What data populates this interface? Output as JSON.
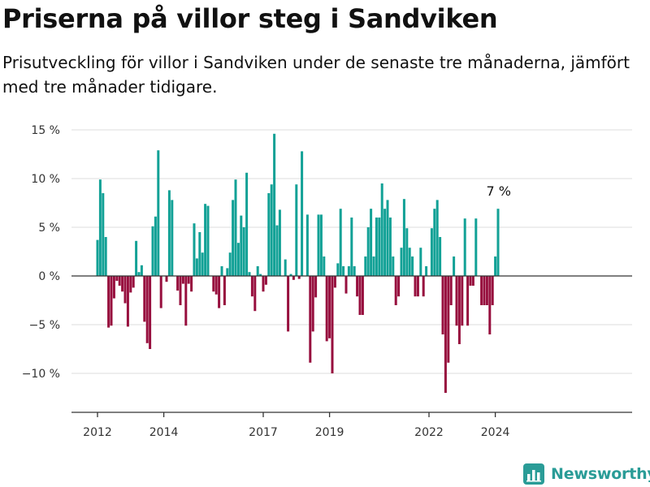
{
  "header": {
    "title": "Priserna på villor steg i Sandviken",
    "subtitle": "Prisutveckling för villor i Sandviken under de senaste tre månaderna, jämfört med tre månader tidigare."
  },
  "logo": {
    "text": "Newsworthy",
    "icon": "newsworthy-chart-icon"
  },
  "colors": {
    "positive": "#12a196",
    "negative": "#970f3e",
    "grid": "#dcdcdc",
    "zero": "#333333"
  },
  "chart_data": {
    "type": "bar",
    "title": "Priserna på villor steg i Sandviken",
    "xlabel": "",
    "ylabel": "",
    "ylim": [
      -14,
      15
    ],
    "x_start": "2012-01",
    "y_ticks": [
      15,
      10,
      5,
      0,
      -5,
      -10
    ],
    "y_tick_labels": [
      "15 %",
      "10 %",
      "5 %",
      "0 %",
      "−5 %",
      "−10 %"
    ],
    "x_ticks": [
      "2012",
      "2014",
      "2017",
      "2019",
      "2022",
      "2024"
    ],
    "end_label": "7 %",
    "values": [
      3.7,
      9.9,
      8.5,
      4.0,
      -5.3,
      -5.1,
      -2.3,
      -0.5,
      -1.0,
      -1.6,
      -2.8,
      -5.2,
      -1.7,
      -1.2,
      3.6,
      0.4,
      1.1,
      -4.7,
      -6.9,
      -7.5,
      5.1,
      6.1,
      12.9,
      -3.3,
      0.0,
      -0.6,
      8.8,
      7.8,
      0.0,
      -1.5,
      -3.0,
      -0.8,
      -5.1,
      -0.8,
      -1.6,
      5.4,
      1.8,
      4.5,
      2.4,
      7.4,
      7.2,
      0.0,
      -1.6,
      -1.9,
      -3.3,
      1.0,
      -3.0,
      0.8,
      2.4,
      7.8,
      9.9,
      3.4,
      6.2,
      5.0,
      10.6,
      0.4,
      -2.1,
      -3.6,
      1.0,
      0.2,
      -1.6,
      -0.9,
      8.5,
      9.4,
      14.6,
      5.2,
      6.8,
      0.0,
      1.7,
      -5.7,
      0.2,
      -0.4,
      9.4,
      -0.3,
      12.8,
      0.0,
      6.3,
      -8.9,
      -5.7,
      -2.2,
      6.3,
      6.3,
      2.0,
      -6.7,
      -6.4,
      -10.0,
      -1.2,
      1.3,
      6.9,
      1.0,
      -1.8,
      1.0,
      6.0,
      1.0,
      -2.1,
      -4.0,
      -4.0,
      2.0,
      5.0,
      6.9,
      2.0,
      6.0,
      6.0,
      9.5,
      6.9,
      7.8,
      6.0,
      2.0,
      -3.0,
      -2.1,
      2.9,
      7.9,
      4.9,
      2.9,
      2.0,
      -2.1,
      -2.1,
      2.9,
      -2.1,
      1.0,
      0.0,
      4.9,
      6.9,
      7.8,
      4.0,
      -6.0,
      -12.0,
      -8.9,
      -3.0,
      2.0,
      -5.1,
      -7.0,
      -5.1,
      5.9,
      -5.1,
      -1.0,
      -1.0,
      5.9,
      0.0,
      -3.0,
      -3.0,
      -3.0,
      -6.0,
      -3.0,
      2.0,
      6.9
    ]
  }
}
